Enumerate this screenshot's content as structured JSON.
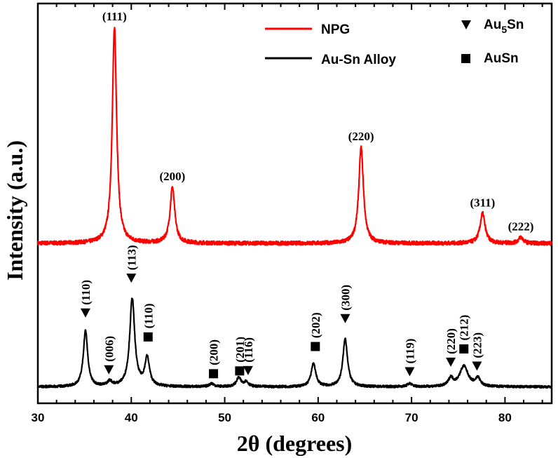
{
  "chart_data": {
    "type": "line",
    "xlabel": "2θ (degrees)",
    "ylabel": "Intensity (a.u.)",
    "xlim": [
      30,
      85
    ],
    "xticks": [
      "30",
      "40",
      "50",
      "60",
      "70",
      "80"
    ],
    "ylim": [
      0,
      1
    ],
    "yticks_shown": false,
    "legend_position": "top-right",
    "series": [
      {
        "name": "NPG",
        "color": "#ff0000",
        "baseline": 0.4,
        "noise": 0.005,
        "peaks": [
          {
            "x": 38.2,
            "height": 0.54,
            "width": 0.28,
            "label": "(111)"
          },
          {
            "x": 44.4,
            "height": 0.14,
            "width": 0.3,
            "label": "(200)"
          },
          {
            "x": 64.6,
            "height": 0.24,
            "width": 0.3,
            "label": "(220)"
          },
          {
            "x": 77.6,
            "height": 0.075,
            "width": 0.32,
            "label": "(311)"
          },
          {
            "x": 81.7,
            "height": 0.015,
            "width": 0.3,
            "label": "(222)"
          }
        ]
      },
      {
        "name": "Au-Sn Alloy",
        "color": "#000000",
        "baseline": 0.041,
        "noise": 0.003,
        "peaks": [
          {
            "x": 35.1,
            "height": 0.14,
            "width": 0.28
          },
          {
            "x": 37.7,
            "height": 0.012,
            "width": 0.3
          },
          {
            "x": 40.1,
            "height": 0.22,
            "width": 0.32
          },
          {
            "x": 41.7,
            "height": 0.07,
            "width": 0.3
          },
          {
            "x": 48.6,
            "height": 0.008,
            "width": 0.3
          },
          {
            "x": 51.5,
            "height": 0.022,
            "width": 0.3
          },
          {
            "x": 52.3,
            "height": 0.012,
            "width": 0.3
          },
          {
            "x": 59.5,
            "height": 0.058,
            "width": 0.3
          },
          {
            "x": 62.9,
            "height": 0.12,
            "width": 0.3
          },
          {
            "x": 69.8,
            "height": 0.008,
            "width": 0.3
          },
          {
            "x": 74.2,
            "height": 0.02,
            "width": 0.3
          },
          {
            "x": 75.6,
            "height": 0.051,
            "width": 0.55
          },
          {
            "x": 77.1,
            "height": 0.02,
            "width": 0.3
          }
        ]
      }
    ],
    "alloy_annotations": [
      {
        "x": 35.1,
        "y": 0.225,
        "marker": "triangle",
        "label": "(110)"
      },
      {
        "x": 37.6,
        "y": 0.083,
        "marker": "triangle",
        "label": "(006)"
      },
      {
        "x": 40.0,
        "y": 0.312,
        "marker": "triangle",
        "label": "(113)"
      },
      {
        "x": 41.8,
        "y": 0.166,
        "marker": "square",
        "label": "(110)"
      },
      {
        "x": 48.8,
        "y": 0.074,
        "marker": "square",
        "label": "(200)"
      },
      {
        "x": 51.6,
        "y": 0.081,
        "marker": "square",
        "label": "(201)"
      },
      {
        "x": 52.5,
        "y": 0.081,
        "marker": "triangle",
        "label": "(116)"
      },
      {
        "x": 59.7,
        "y": 0.142,
        "marker": "square",
        "label": "(202)"
      },
      {
        "x": 62.9,
        "y": 0.211,
        "marker": "triangle",
        "label": "(300)"
      },
      {
        "x": 69.8,
        "y": 0.078,
        "marker": "triangle",
        "label": "(119)"
      },
      {
        "x": 74.2,
        "y": 0.102,
        "marker": "triangle",
        "label": "(220)"
      },
      {
        "x": 75.6,
        "y": 0.136,
        "marker": "square",
        "label": "(212)"
      },
      {
        "x": 77.0,
        "y": 0.092,
        "marker": "triangle",
        "label": "(223)"
      }
    ],
    "marker_legend": [
      {
        "marker": "triangle",
        "label": "Au",
        "subscript": "5",
        "label_suffix": "Sn"
      },
      {
        "marker": "square",
        "label": "AuSn"
      }
    ]
  }
}
